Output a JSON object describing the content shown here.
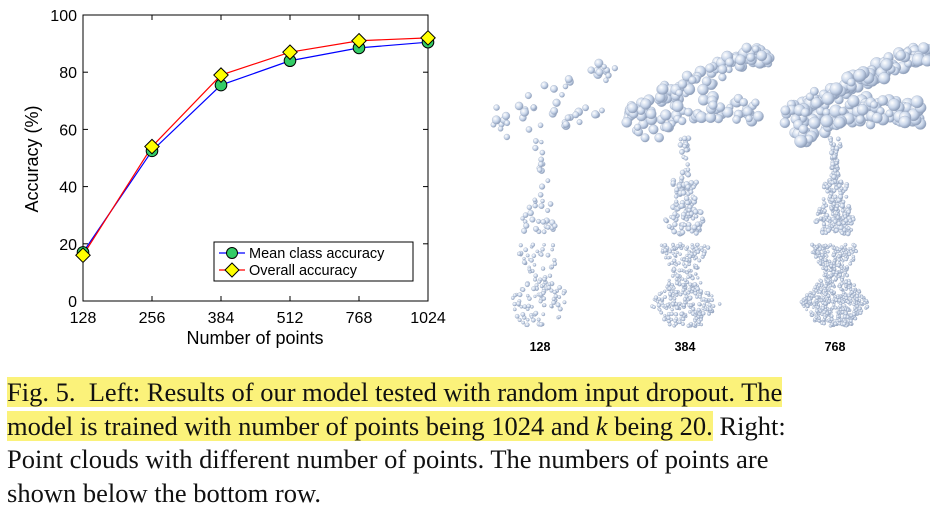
{
  "chart_data": {
    "type": "line",
    "xlabel": "Number of points",
    "ylabel": "Accuracy (%)",
    "categories": [
      "128",
      "256",
      "384",
      "512",
      "768",
      "1024"
    ],
    "ylim": [
      0,
      100
    ],
    "yticks": [
      "0",
      "20",
      "40",
      "60",
      "80",
      "100"
    ],
    "grid": false,
    "legend_position": "bottom-right",
    "series": [
      {
        "name": "Mean class accuracy",
        "color": "#0000ff",
        "marker": "circle",
        "marker_fill": "#33cc66",
        "values": [
          17,
          52.5,
          75.5,
          84,
          88.5,
          90.5
        ]
      },
      {
        "name": "Overall accuracy",
        "color": "#ff0000",
        "marker": "diamond",
        "marker_fill": "#ffff00",
        "values": [
          16,
          54,
          79,
          87,
          91,
          92
        ]
      }
    ]
  },
  "point_cloud_figure": {
    "rows": [
      "airplane",
      "guitar",
      "vase"
    ],
    "column_labels": [
      "128",
      "384",
      "768"
    ]
  },
  "caption": {
    "fig_label": "Fig. 5.",
    "line1_rest": "Left: Results of our model tested with random input dropout. The",
    "line2_a": "model is trained with number of points being 1024 and ",
    "line2_k": "k",
    "line2_b": " being 20.",
    "line2_c": " Right:",
    "line3": "Point clouds with different number of points. The numbers of points are",
    "line4": "shown below the bottom row."
  }
}
